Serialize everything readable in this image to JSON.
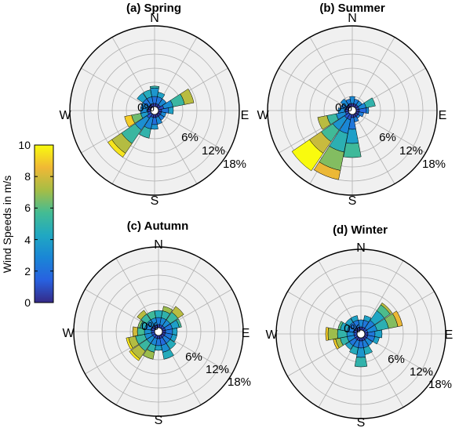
{
  "colorbar": {
    "label": "Wind Speeds in m/s",
    "min": 0,
    "max": 10,
    "ticks": [
      "0",
      "2",
      "4",
      "6",
      "8",
      "10"
    ],
    "colormap": [
      "#352a87",
      "#2861e0",
      "#1a86d6",
      "#20a8c2",
      "#44bc93",
      "#a6bd45",
      "#f0b835",
      "#f9fb0e"
    ]
  },
  "chart_data": [
    {
      "type": "windrose",
      "title": "(a) Spring",
      "directions": [
        "N",
        "E",
        "S",
        "W"
      ],
      "radial_labels": [
        "0%",
        "6%",
        "12%",
        "18%"
      ],
      "rmax": 18,
      "colors": {
        "plot_background": "#f0f0f0",
        "grid": "#b0b0b0"
      },
      "sectors": [
        {
          "dir": 0,
          "upper": [
            1.5,
            3.0,
            4.8,
            5.2
          ],
          "speed_max": 5.0
        },
        {
          "dir": 22,
          "upper": [
            1.5,
            3.0,
            4.0
          ],
          "speed_max": 4.0
        },
        {
          "dir": 45,
          "upper": [
            1.5,
            3.0
          ],
          "speed_max": 3.0
        },
        {
          "dir": 68,
          "upper": [
            2.0,
            4.0,
            6.5,
            8.5
          ],
          "speed_max": 7.5
        },
        {
          "dir": 90,
          "upper": [
            1.5,
            3.0,
            4.0
          ],
          "speed_max": 4.0
        },
        {
          "dir": 112,
          "upper": [
            1.5,
            2.5
          ],
          "speed_max": 3.0
        },
        {
          "dir": 135,
          "upper": [
            1.5,
            2.5
          ],
          "speed_max": 2.5
        },
        {
          "dir": 158,
          "upper": [
            1.5,
            3.0
          ],
          "speed_max": 3.0
        },
        {
          "dir": 180,
          "upper": [
            1.5,
            3.0,
            4.0
          ],
          "speed_max": 3.5
        },
        {
          "dir": 202,
          "upper": [
            1.5,
            4.0,
            6.0
          ],
          "speed_max": 5.0
        },
        {
          "dir": 225,
          "upper": [
            2.0,
            5.0,
            8.5,
            11.0,
            12.0
          ],
          "speed_max": 9.5
        },
        {
          "dir": 248,
          "upper": [
            1.5,
            3.0,
            5.0,
            6.5
          ],
          "speed_max": 9.0
        },
        {
          "dir": 270,
          "upper": [
            1.5,
            3.0
          ],
          "speed_max": 3.0
        },
        {
          "dir": 292,
          "upper": [
            1.5,
            3.0
          ],
          "speed_max": 3.0
        },
        {
          "dir": 315,
          "upper": [
            1.5,
            3.0,
            4.5
          ],
          "speed_max": 4.0
        },
        {
          "dir": 338,
          "upper": [
            1.5,
            3.0,
            4.5
          ],
          "speed_max": 4.5
        }
      ]
    },
    {
      "type": "windrose",
      "title": "(b) Summer",
      "directions": [
        "N",
        "E",
        "S",
        "W"
      ],
      "radial_labels": [
        "0%",
        "6%",
        "12%",
        "18%"
      ],
      "rmax": 18,
      "colors": {
        "plot_background": "#f0f0f0",
        "grid": "#b0b0b0"
      },
      "sectors": [
        {
          "dir": 0,
          "upper": [
            1.5,
            3.0
          ],
          "speed_max": 3.0
        },
        {
          "dir": 22,
          "upper": [
            1.5,
            2.5
          ],
          "speed_max": 2.5
        },
        {
          "dir": 45,
          "upper": [
            1.5,
            2.5
          ],
          "speed_max": 3.0
        },
        {
          "dir": 68,
          "upper": [
            1.5,
            3.0,
            5.0
          ],
          "speed_max": 5.0
        },
        {
          "dir": 90,
          "upper": [
            1.5,
            3.0,
            3.5
          ],
          "speed_max": 3.0
        },
        {
          "dir": 112,
          "upper": [
            1.5,
            2.5
          ],
          "speed_max": 2.5
        },
        {
          "dir": 135,
          "upper": [
            1.5,
            2.0
          ],
          "speed_max": 2.5
        },
        {
          "dir": 158,
          "upper": [
            1.5,
            2.5
          ],
          "speed_max": 2.5
        },
        {
          "dir": 180,
          "upper": [
            1.5,
            4.0,
            7.0,
            10.0
          ],
          "speed_max": 5.5
        },
        {
          "dir": 202,
          "upper": [
            2.0,
            5.0,
            9.0,
            13.0,
            15.0
          ],
          "speed_max": 8.5
        },
        {
          "dir": 225,
          "upper": [
            2.0,
            5.0,
            8.0,
            11.0,
            15.5
          ],
          "speed_max": 10.0
        },
        {
          "dir": 248,
          "upper": [
            1.5,
            3.5,
            5.5,
            7.5
          ],
          "speed_max": 7.5
        },
        {
          "dir": 270,
          "upper": [
            1.5,
            3.0
          ],
          "speed_max": 3.0
        },
        {
          "dir": 292,
          "upper": [
            1.5,
            2.5
          ],
          "speed_max": 2.5
        },
        {
          "dir": 315,
          "upper": [
            1.5,
            3.0
          ],
          "speed_max": 3.0
        },
        {
          "dir": 338,
          "upper": [
            1.5,
            2.5
          ],
          "speed_max": 2.5
        }
      ]
    },
    {
      "type": "windrose",
      "title": "(c) Autumn",
      "directions": [
        "N",
        "E",
        "S",
        "W"
      ],
      "radial_labels": [
        "0%",
        "6%",
        "12%",
        "18%"
      ],
      "rmax": 18,
      "colors": {
        "plot_background": "#f0f0f0",
        "grid": "#b0b0b0"
      },
      "sectors": [
        {
          "dir": 0,
          "upper": [
            1.5,
            3.0,
            4.5
          ],
          "speed_max": 4.5
        },
        {
          "dir": 22,
          "upper": [
            1.5,
            3.0,
            4.5,
            5.5
          ],
          "speed_max": 7.0
        },
        {
          "dir": 45,
          "upper": [
            1.5,
            3.0,
            5.0,
            6.5
          ],
          "speed_max": 7.5
        },
        {
          "dir": 68,
          "upper": [
            1.5,
            3.0,
            4.5,
            5.0
          ],
          "speed_max": 5.5
        },
        {
          "dir": 90,
          "upper": [
            1.5,
            3.0,
            4.0
          ],
          "speed_max": 4.0
        },
        {
          "dir": 112,
          "upper": [
            1.5,
            3.0,
            4.0
          ],
          "speed_max": 4.0
        },
        {
          "dir": 135,
          "upper": [
            1.5,
            3.0,
            4.5
          ],
          "speed_max": 4.5
        },
        {
          "dir": 158,
          "upper": [
            1.5,
            3.0,
            4.5,
            6.0
          ],
          "speed_max": 4.5
        },
        {
          "dir": 180,
          "upper": [
            1.5,
            3.0,
            4.0
          ],
          "speed_max": 4.0
        },
        {
          "dir": 202,
          "upper": [
            1.5,
            3.0,
            4.5,
            6.0
          ],
          "speed_max": 7.0
        },
        {
          "dir": 225,
          "upper": [
            1.5,
            3.0,
            5.0,
            7.0,
            7.5
          ],
          "speed_max": 9.5
        },
        {
          "dir": 248,
          "upper": [
            1.5,
            3.0,
            5.0,
            6.5,
            7.0
          ],
          "speed_max": 9.5
        },
        {
          "dir": 270,
          "upper": [
            1.5,
            3.0,
            4.5,
            5.5
          ],
          "speed_max": 8.0
        },
        {
          "dir": 292,
          "upper": [
            1.5,
            3.0,
            4.0,
            4.5
          ],
          "speed_max": 6.5
        },
        {
          "dir": 315,
          "upper": [
            1.5,
            3.0,
            4.5,
            5.5
          ],
          "speed_max": 7.5
        },
        {
          "dir": 338,
          "upper": [
            1.5,
            3.0,
            4.5
          ],
          "speed_max": 5.5
        }
      ]
    },
    {
      "type": "windrose",
      "title": "(d) Winter",
      "directions": [
        "N",
        "E",
        "S",
        "W"
      ],
      "radial_labels": [
        "0%",
        "6%",
        "12%",
        "18%"
      ],
      "rmax": 18,
      "colors": {
        "plot_background": "#f0f0f0",
        "grid": "#b0b0b0"
      },
      "sectors": [
        {
          "dir": 0,
          "upper": [
            1.5,
            3.0
          ],
          "speed_max": 3.0
        },
        {
          "dir": 22,
          "upper": [
            1.5,
            3.0,
            4.0
          ],
          "speed_max": 4.0
        },
        {
          "dir": 45,
          "upper": [
            1.5,
            3.5,
            6.0,
            7.5,
            8.0
          ],
          "speed_max": 7.5
        },
        {
          "dir": 68,
          "upper": [
            1.5,
            3.5,
            6.0,
            8.0,
            9.0
          ],
          "speed_max": 8.5
        },
        {
          "dir": 90,
          "upper": [
            1.5,
            3.0,
            4.5
          ],
          "speed_max": 4.0
        },
        {
          "dir": 112,
          "upper": [
            1.5,
            3.0,
            4.0
          ],
          "speed_max": 4.0
        },
        {
          "dir": 135,
          "upper": [
            1.5,
            3.0
          ],
          "speed_max": 3.0
        },
        {
          "dir": 158,
          "upper": [
            1.5,
            3.0,
            4.5
          ],
          "speed_max": 4.5
        },
        {
          "dir": 180,
          "upper": [
            1.5,
            3.0,
            5.0,
            7.0
          ],
          "speed_max": 5.0
        },
        {
          "dir": 202,
          "upper": [
            1.5,
            3.0,
            4.5
          ],
          "speed_max": 4.5
        },
        {
          "dir": 225,
          "upper": [
            1.5,
            3.0,
            4.0
          ],
          "speed_max": 4.0
        },
        {
          "dir": 248,
          "upper": [
            1.5,
            3.0,
            4.5,
            5.5,
            6.0
          ],
          "speed_max": 9.0
        },
        {
          "dir": 270,
          "upper": [
            1.5,
            3.0,
            5.0,
            7.0,
            7.5
          ],
          "speed_max": 9.0
        },
        {
          "dir": 292,
          "upper": [
            1.5,
            3.0,
            4.5,
            5.0
          ],
          "speed_max": 6.0
        },
        {
          "dir": 315,
          "upper": [
            1.5,
            3.0,
            4.0
          ],
          "speed_max": 4.0
        },
        {
          "dir": 338,
          "upper": [
            1.5,
            3.0,
            4.0
          ],
          "speed_max": 4.0
        }
      ]
    }
  ]
}
